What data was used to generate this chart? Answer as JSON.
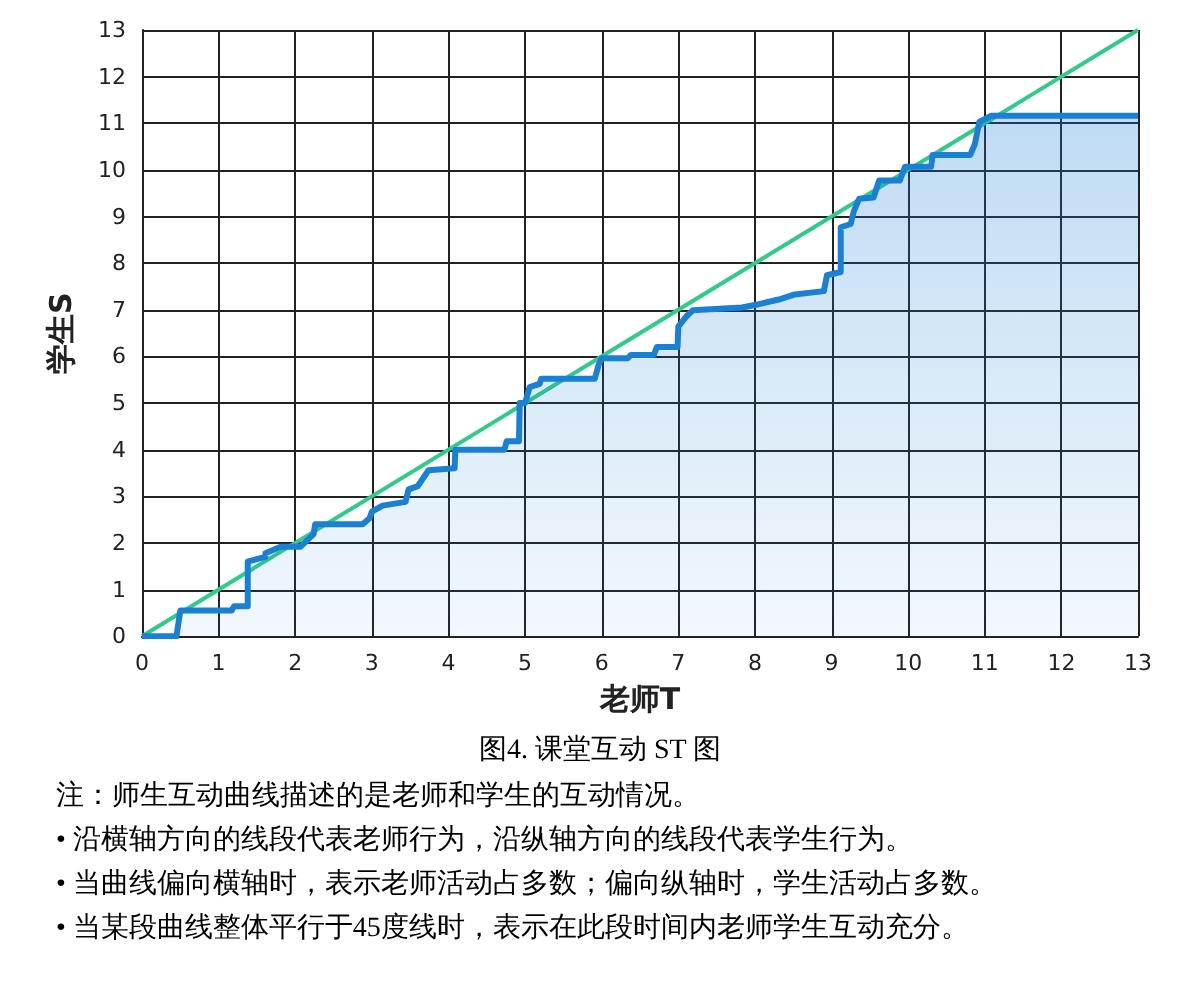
{
  "chart_data": {
    "type": "area",
    "title": "图4. 课堂互动 ST 图",
    "xlabel": "老师T",
    "ylabel": "学生S",
    "annotations": [
      "注：师生互动曲线描述的是老师和学生的互动情况。",
      "• 沿横轴方向的线段代表老师行为，沿纵轴方向的线段代表学生行为。",
      "• 当曲线偏向横轴时，表示老师活动占多数；偏向纵轴时，学生活动占多数。",
      "• 当某段曲线整体平行于45度线时，表示在此段时间内老师学生互动充分。"
    ],
    "xlim": [
      0,
      13
    ],
    "ylim": [
      0,
      13
    ],
    "xticks": [
      0,
      1,
      2,
      3,
      4,
      5,
      6,
      7,
      8,
      9,
      10,
      11,
      12,
      13
    ],
    "yticks": [
      0,
      1,
      2,
      3,
      4,
      5,
      6,
      7,
      8,
      9,
      10,
      11,
      12,
      13
    ],
    "grid": true,
    "marker": "none",
    "line_style": "solid",
    "series": [
      {
        "color": "#1a80d6",
        "x": [
          0,
          0.45,
          0.5,
          1.17,
          1.2,
          1.38,
          1.38,
          1.61,
          1.61,
          1.81,
          2.07,
          2.24,
          2.26,
          2.88,
          2.97,
          3.0,
          3.14,
          3.44,
          3.48,
          3.6,
          3.74,
          4.08,
          4.09,
          4.73,
          4.76,
          4.92,
          4.93,
          5.0,
          5.06,
          5.19,
          5.21,
          5.91,
          5.96,
          6.0,
          6.34,
          6.38,
          6.68,
          6.72,
          6.99,
          7.0,
          7.1,
          7.19,
          7.83,
          8.05,
          8.31,
          8.52,
          8.9,
          8.94,
          9.12,
          9.12,
          9.25,
          9.29,
          9.36,
          9.55,
          9.62,
          9.89,
          9.96,
          10.3,
          10.32,
          10.81,
          10.87,
          10.93,
          11.08,
          13
        ],
        "values": [
          0,
          0,
          0.55,
          0.55,
          0.64,
          0.64,
          1.6,
          1.7,
          1.78,
          1.92,
          1.92,
          2.19,
          2.4,
          2.4,
          2.53,
          2.67,
          2.8,
          2.88,
          3.15,
          3.22,
          3.56,
          3.6,
          4.0,
          4.0,
          4.18,
          4.18,
          5.0,
          5.0,
          5.34,
          5.41,
          5.52,
          5.52,
          5.82,
          5.96,
          5.96,
          6.03,
          6.03,
          6.2,
          6.2,
          6.64,
          6.85,
          6.99,
          7.05,
          7.12,
          7.22,
          7.33,
          7.4,
          7.74,
          7.81,
          8.77,
          8.84,
          9.11,
          9.38,
          9.41,
          9.77,
          9.77,
          10.07,
          10.07,
          10.32,
          10.32,
          10.55,
          11.03,
          11.16,
          11.16
        ]
      },
      {
        "type": "line",
        "color": "#2ecc87",
        "x": [
          0,
          13
        ],
        "values": [
          0,
          13
        ]
      }
    ]
  }
}
